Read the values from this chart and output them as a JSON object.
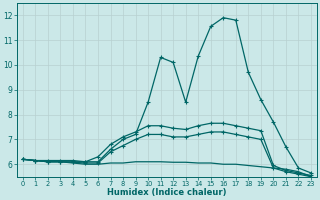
{
  "xlabel": "Humidex (Indice chaleur)",
  "xlim": [
    -0.5,
    23.5
  ],
  "ylim": [
    5.5,
    12.5
  ],
  "xticks": [
    0,
    1,
    2,
    3,
    4,
    5,
    6,
    7,
    8,
    9,
    10,
    11,
    12,
    13,
    14,
    15,
    16,
    17,
    18,
    19,
    20,
    21,
    22,
    23
  ],
  "yticks": [
    6,
    7,
    8,
    9,
    10,
    11,
    12
  ],
  "background_color": "#cbe8e8",
  "line_color": "#006666",
  "line1_x": [
    0,
    1,
    2,
    3,
    4,
    5,
    6,
    7,
    8,
    9,
    10,
    11,
    12,
    13,
    14,
    15,
    16,
    17,
    18,
    19,
    20,
    21,
    22,
    23
  ],
  "line1_y": [
    6.2,
    6.15,
    6.15,
    6.15,
    6.15,
    6.1,
    6.1,
    6.6,
    7.0,
    7.2,
    8.5,
    10.3,
    10.1,
    8.5,
    10.35,
    11.55,
    11.9,
    11.8,
    9.7,
    8.6,
    7.7,
    6.7,
    5.85,
    5.65
  ],
  "line2_x": [
    0,
    1,
    2,
    3,
    4,
    5,
    6,
    7,
    8,
    9,
    10,
    11,
    12,
    13,
    14,
    15,
    16,
    17,
    18,
    19,
    20,
    21,
    22,
    23
  ],
  "line2_y": [
    6.2,
    6.15,
    6.1,
    6.1,
    6.1,
    6.1,
    6.3,
    6.8,
    7.1,
    7.3,
    7.55,
    7.55,
    7.45,
    7.4,
    7.55,
    7.65,
    7.65,
    7.55,
    7.45,
    7.35,
    5.95,
    5.75,
    5.65,
    5.55
  ],
  "line3_x": [
    0,
    1,
    2,
    3,
    4,
    5,
    6,
    7,
    8,
    9,
    10,
    11,
    12,
    13,
    14,
    15,
    16,
    17,
    18,
    19,
    20,
    21,
    22,
    23
  ],
  "line3_y": [
    6.2,
    6.15,
    6.1,
    6.1,
    6.08,
    6.05,
    6.05,
    6.5,
    6.75,
    7.0,
    7.2,
    7.2,
    7.1,
    7.1,
    7.2,
    7.3,
    7.3,
    7.2,
    7.1,
    7.0,
    5.85,
    5.7,
    5.6,
    5.5
  ],
  "line4_x": [
    0,
    1,
    2,
    3,
    4,
    5,
    6,
    7,
    8,
    9,
    10,
    11,
    12,
    13,
    14,
    15,
    16,
    17,
    18,
    19,
    20,
    21,
    22,
    23
  ],
  "line4_y": [
    6.2,
    6.15,
    6.1,
    6.1,
    6.05,
    6.0,
    6.0,
    6.05,
    6.05,
    6.1,
    6.1,
    6.1,
    6.08,
    6.08,
    6.05,
    6.05,
    6.0,
    6.0,
    5.95,
    5.9,
    5.85,
    5.8,
    5.7,
    5.5
  ]
}
